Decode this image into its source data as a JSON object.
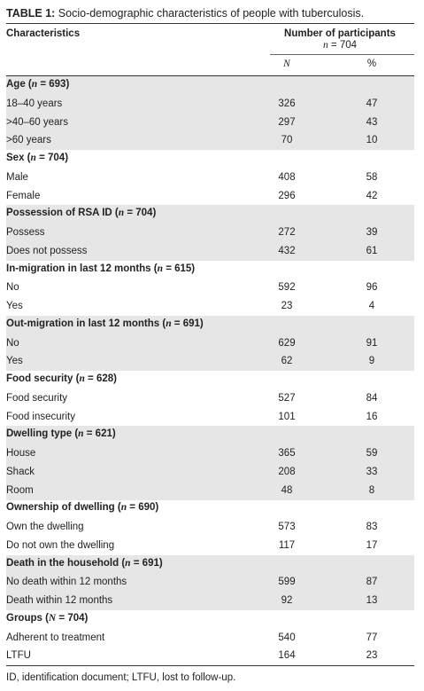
{
  "caption": [
    "TABLE 1:",
    " Socio-demographic characteristics of people with tuberculosis."
  ],
  "header": {
    "characteristics": "Characteristics",
    "participants": "Number of participants",
    "participants_n": [
      "n",
      " = 704"
    ],
    "col_n": "N",
    "col_pct": "%"
  },
  "groups": [
    {
      "title": [
        "Age (",
        "n",
        " = 693)"
      ],
      "rows": [
        [
          "18–40 years",
          326,
          47
        ],
        [
          ">40–60 years",
          297,
          43
        ],
        [
          ">60 years",
          70,
          10
        ]
      ]
    },
    {
      "title": [
        "Sex (",
        "n",
        " = 704)"
      ],
      "rows": [
        [
          "Male",
          408,
          58
        ],
        [
          "Female",
          296,
          42
        ]
      ]
    },
    {
      "title": [
        "Possession of RSA ID (",
        "n",
        " = 704)"
      ],
      "rows": [
        [
          "Possess",
          272,
          39
        ],
        [
          "Does not possess",
          432,
          61
        ]
      ]
    },
    {
      "title": [
        "In-migration in last 12 months (",
        "n",
        " = 615)"
      ],
      "rows": [
        [
          "No",
          592,
          96
        ],
        [
          "Yes",
          23,
          4
        ]
      ]
    },
    {
      "title": [
        "Out-migration in last 12 months (",
        "n",
        " = 691)"
      ],
      "rows": [
        [
          "No",
          629,
          91
        ],
        [
          "Yes",
          62,
          9
        ]
      ]
    },
    {
      "title": [
        "Food security (",
        "n",
        " = 628)"
      ],
      "rows": [
        [
          "Food security",
          527,
          84
        ],
        [
          "Food insecurity",
          101,
          16
        ]
      ]
    },
    {
      "title": [
        "Dwelling type (",
        "n",
        " = 621)"
      ],
      "rows": [
        [
          "House",
          365,
          59
        ],
        [
          "Shack",
          208,
          33
        ],
        [
          "Room",
          48,
          8
        ]
      ]
    },
    {
      "title": [
        "Ownership of dwelling (",
        "n",
        " = 690)"
      ],
      "rows": [
        [
          "Own the dwelling",
          573,
          83
        ],
        [
          "Do not own the dwelling",
          117,
          17
        ]
      ]
    },
    {
      "title": [
        "Death in the household (",
        "n",
        " = 691)"
      ],
      "rows": [
        [
          "No death within 12 months",
          599,
          87
        ],
        [
          "Death within 12 months",
          92,
          13
        ]
      ]
    },
    {
      "title": [
        "Groups (",
        "N",
        " = 704)"
      ],
      "rows": [
        [
          "Adherent to treatment",
          540,
          77
        ],
        [
          "LTFU",
          164,
          23
        ]
      ]
    }
  ],
  "footnote": "ID, identification document; LTFU, lost to follow-up."
}
